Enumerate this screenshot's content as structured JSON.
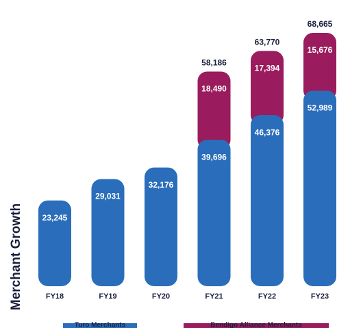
{
  "chart_data": {
    "type": "stacked_bar",
    "y_axis_label": "Merchant Growth",
    "categories": [
      "FY18",
      "FY19",
      "FY20",
      "FY21",
      "FY22",
      "FY23"
    ],
    "series": [
      {
        "name": "Turo Merchants",
        "color": "#2a6ebb",
        "values": [
          23245,
          29031,
          32176,
          39696,
          46376,
          52989
        ],
        "value_labels": [
          "23,245",
          "29,031",
          "32,176",
          "39,696",
          "46,376",
          "52,989"
        ]
      },
      {
        "name": "Bendigo Alliance Merchants",
        "color": "#9b1c5e",
        "values": [
          null,
          null,
          null,
          18490,
          17394,
          15676
        ],
        "value_labels": [
          null,
          null,
          null,
          "18,490",
          "17,394",
          "15,676"
        ]
      }
    ],
    "totals": [
      null,
      null,
      null,
      58186,
      63770,
      68665
    ],
    "total_labels": [
      null,
      null,
      null,
      "58,186",
      "63,770",
      "68,665"
    ],
    "ylim": [
      0,
      72000
    ]
  }
}
